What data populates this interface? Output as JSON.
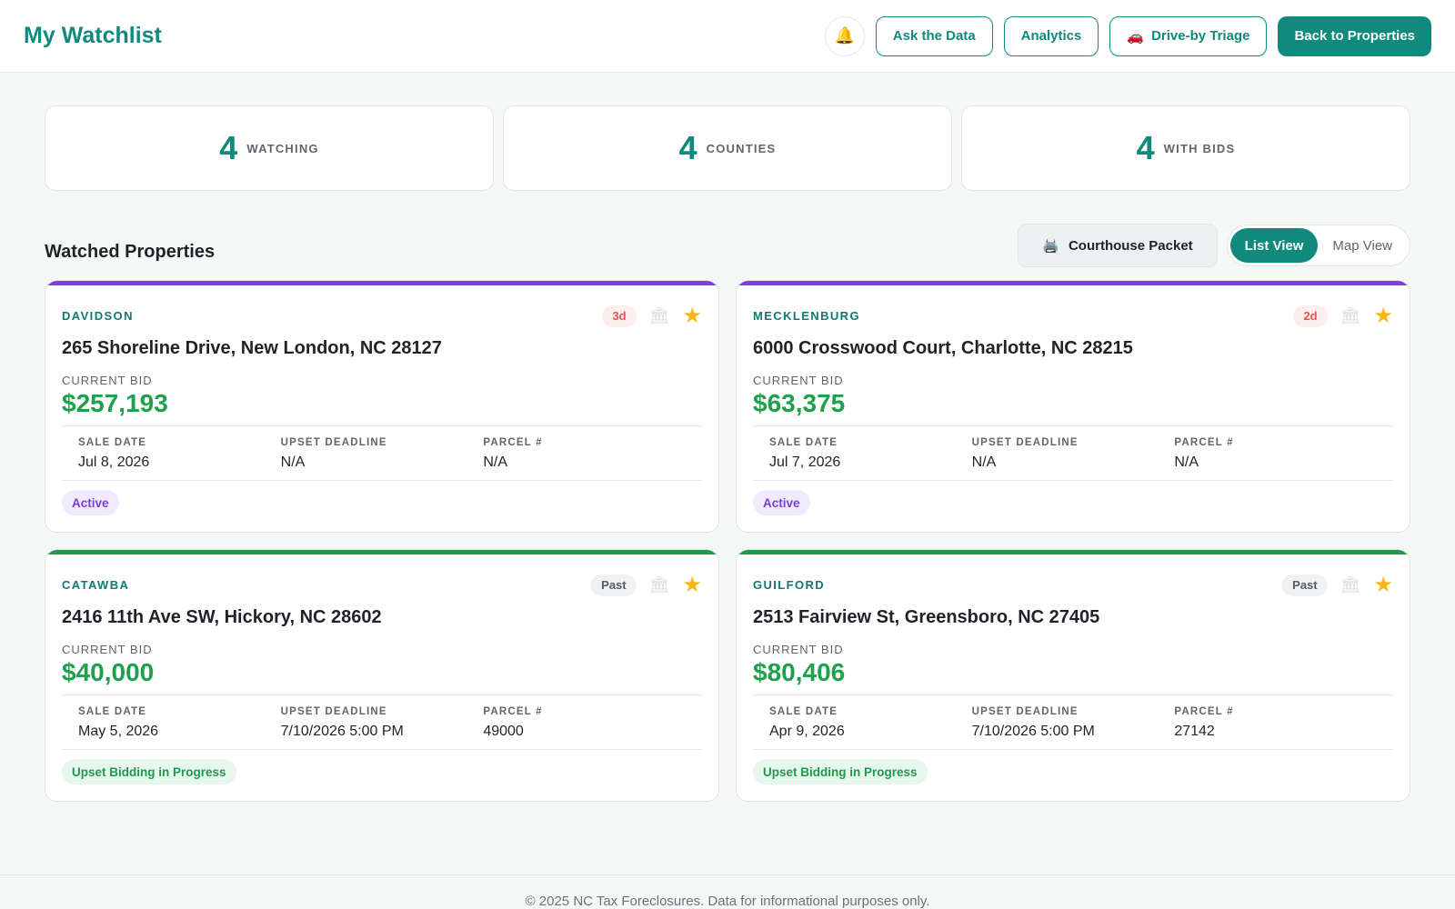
{
  "header": {
    "title": "My Watchlist",
    "bell_icon": "bell-icon",
    "buttons": {
      "ask": "Ask the Data",
      "analytics": "Analytics",
      "driveby": "Drive-by Triage",
      "back": "Back to Properties"
    }
  },
  "stats": [
    {
      "value": "4",
      "label": "WATCHING"
    },
    {
      "value": "4",
      "label": "COUNTIES"
    },
    {
      "value": "4",
      "label": "WITH BIDS"
    }
  ],
  "section": {
    "title": "Watched Properties",
    "packet_label": "Courthouse Packet",
    "views": {
      "list": "List View",
      "map": "Map View"
    }
  },
  "colors": {
    "accent": "#0f8a7d",
    "active_bar": "#7b3fe4",
    "upset_bar": "#1f9a4a",
    "bid_green": "#1ea14b"
  },
  "labels": {
    "current_bid": "CURRENT BID",
    "sale_date": "SALE DATE",
    "upset_deadline": "UPSET DEADLINE",
    "parcel": "PARCEL #"
  },
  "properties": [
    {
      "county": "DAVIDSON",
      "badge": "3d",
      "address": "265 Shoreline Drive, New London, NC 28127",
      "bid": "$257,193",
      "sale_date": "Jul 8, 2026",
      "upset_deadline": "N/A",
      "parcel": "N/A",
      "status": "Active"
    },
    {
      "county": "MECKLENBURG",
      "badge": "2d",
      "address": "6000 Crosswood Court, Charlotte, NC 28215",
      "bid": "$63,375",
      "sale_date": "Jul 7, 2026",
      "upset_deadline": "N/A",
      "parcel": "N/A",
      "status": "Active"
    },
    {
      "county": "CATAWBA",
      "badge": "Past",
      "address": "2416 11th Ave SW, Hickory, NC 28602",
      "bid": "$40,000",
      "sale_date": "May 5, 2026",
      "upset_deadline": "7/10/2026 5:00 PM",
      "parcel": "49000",
      "status": "Upset Bidding in Progress"
    },
    {
      "county": "GUILFORD",
      "badge": "Past",
      "address": "2513 Fairview St, Greensboro, NC 27405",
      "bid": "$80,406",
      "sale_date": "Apr 9, 2026",
      "upset_deadline": "7/10/2026 5:00 PM",
      "parcel": "27142",
      "status": "Upset Bidding in Progress"
    }
  ],
  "footer": {
    "text": "© 2025 NC Tax Foreclosures. Data for informational purposes only."
  }
}
